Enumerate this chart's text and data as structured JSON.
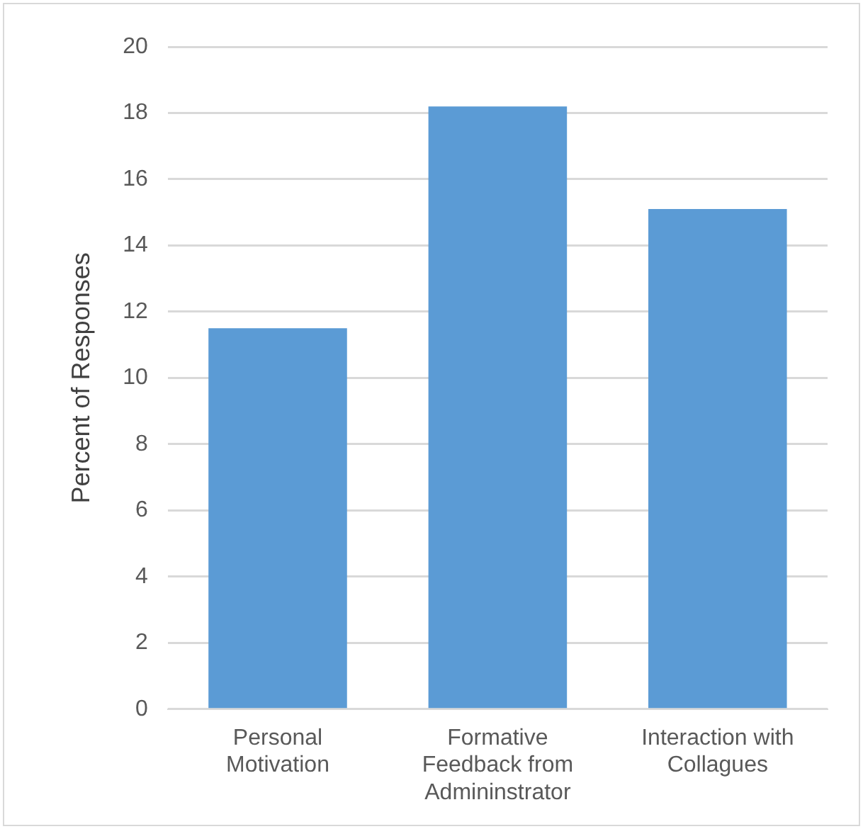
{
  "chart_data": {
    "type": "bar",
    "ylabel": "Percent of Responses",
    "categories": [
      "Personal Motivation",
      "Formative Feedback from Admininstrator",
      "Interaction with Collagues"
    ],
    "values": [
      11.5,
      18.2,
      15.1
    ],
    "color": "#5b9bd5",
    "ylim": [
      0,
      20
    ],
    "yticks": [
      0,
      2,
      4,
      6,
      8,
      10,
      12,
      14,
      16,
      18,
      20
    ],
    "grid": "y"
  }
}
